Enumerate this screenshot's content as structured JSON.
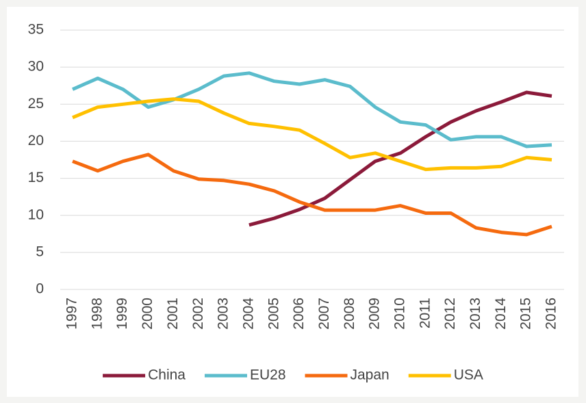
{
  "chart_data": {
    "type": "line",
    "categories": [
      "1997",
      "1998",
      "1999",
      "2000",
      "2001",
      "2002",
      "2003",
      "2004",
      "2005",
      "2006",
      "2007",
      "2008",
      "2009",
      "2010",
      "2011",
      "2012",
      "2013",
      "2014",
      "2015",
      "2016"
    ],
    "series": [
      {
        "name": "China",
        "color": "#8b1a3a",
        "values": [
          null,
          null,
          null,
          null,
          null,
          null,
          null,
          8.7,
          9.6,
          10.8,
          12.3,
          14.8,
          17.3,
          18.4,
          20.6,
          22.6,
          24.1,
          25.3,
          26.6,
          26.1
        ]
      },
      {
        "name": "EU28",
        "color": "#5bbccc",
        "values": [
          27.0,
          28.5,
          27.0,
          24.6,
          25.6,
          27.0,
          28.8,
          29.2,
          28.1,
          27.7,
          28.3,
          27.4,
          24.6,
          22.6,
          22.2,
          20.2,
          20.6,
          20.6,
          19.3,
          19.5
        ]
      },
      {
        "name": "Japan",
        "color": "#f56a0f",
        "values": [
          17.3,
          16.0,
          17.3,
          18.2,
          16.0,
          14.9,
          14.7,
          14.2,
          13.3,
          11.8,
          10.7,
          10.7,
          10.7,
          11.3,
          10.3,
          10.3,
          8.3,
          7.7,
          7.4,
          8.5
        ]
      },
      {
        "name": "USA",
        "color": "#ffc000",
        "values": [
          23.2,
          24.6,
          25.0,
          25.4,
          25.7,
          25.4,
          23.8,
          22.4,
          22.0,
          21.5,
          19.7,
          17.8,
          18.4,
          17.3,
          16.2,
          16.4,
          16.4,
          16.6,
          17.8,
          17.5
        ]
      }
    ],
    "ylim": [
      0,
      35
    ],
    "yticks": [
      0,
      5,
      10,
      15,
      20,
      25,
      30,
      35
    ],
    "grid": true,
    "legend": "bottom"
  }
}
